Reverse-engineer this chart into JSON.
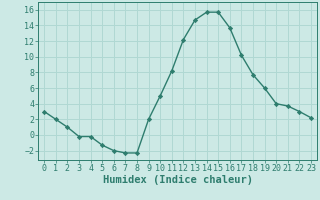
{
  "x": [
    0,
    1,
    2,
    3,
    4,
    5,
    6,
    7,
    8,
    9,
    10,
    11,
    12,
    13,
    14,
    15,
    16,
    17,
    18,
    19,
    20,
    21,
    22,
    23
  ],
  "y": [
    3.0,
    2.0,
    1.0,
    -0.2,
    -0.2,
    -1.3,
    -2.0,
    -2.3,
    -2.3,
    2.0,
    5.0,
    8.2,
    12.2,
    14.7,
    15.7,
    15.7,
    13.7,
    10.2,
    7.7,
    6.0,
    4.0,
    3.7,
    3.0,
    2.2
  ],
  "line_color": "#2e7d6e",
  "marker": "D",
  "marker_size": 2.2,
  "background_color": "#cce9e5",
  "grid_color": "#b0d8d3",
  "xlabel": "Humidex (Indice chaleur)",
  "xlabel_fontsize": 7.5,
  "xlabel_color": "#2e7d6e",
  "tick_color": "#2e7d6e",
  "ylim": [
    -3.2,
    17
  ],
  "xlim": [
    -0.5,
    23.5
  ],
  "yticks": [
    -2,
    0,
    2,
    4,
    6,
    8,
    10,
    12,
    14,
    16
  ],
  "xticks": [
    0,
    1,
    2,
    3,
    4,
    5,
    6,
    7,
    8,
    9,
    10,
    11,
    12,
    13,
    14,
    15,
    16,
    17,
    18,
    19,
    20,
    21,
    22,
    23
  ],
  "tick_fontsize": 6.0,
  "linewidth": 1.0
}
